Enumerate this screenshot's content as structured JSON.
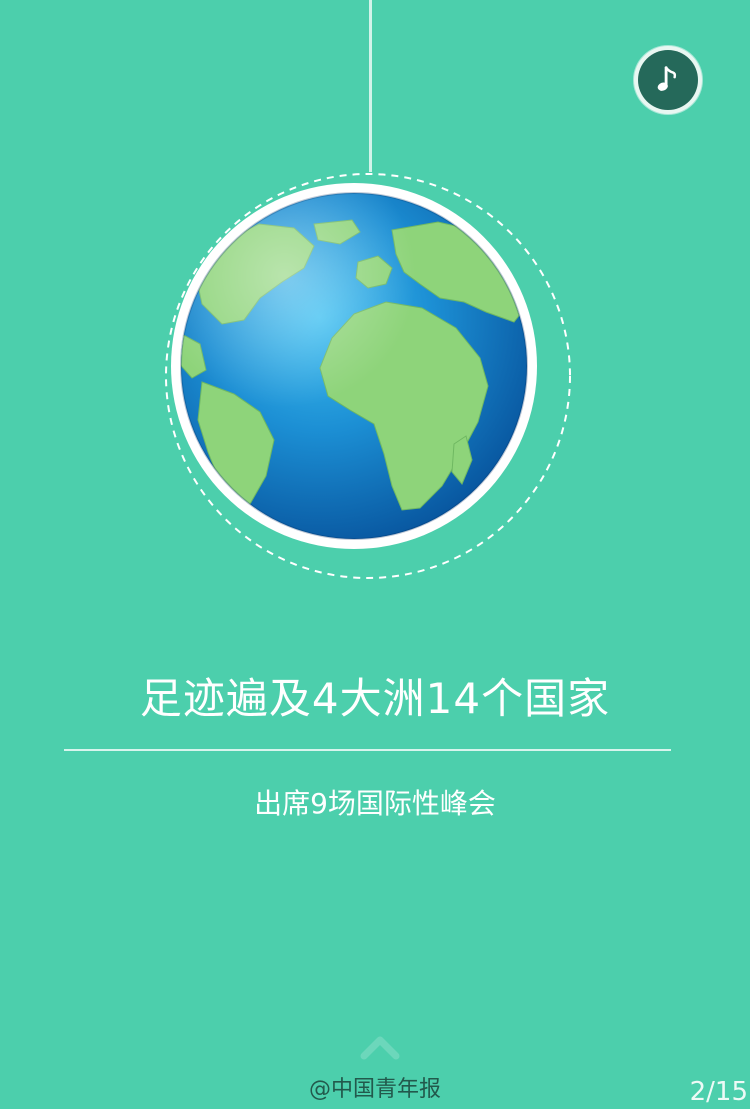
{
  "headline": "足迹遍及4大洲14个国家",
  "subheadline": "出席9场国际性峰会",
  "watermark": "@中国青年报",
  "page_indicator": "2/15",
  "icons": {
    "music": "music-note-icon",
    "globe": "globe-icon",
    "scroll": "chevron-up-icon"
  },
  "colors": {
    "background": "#4ccfac",
    "text": "#ffffff",
    "music_button": "#25695a",
    "ocean": "#1c8fd4",
    "land": "#8ed47a"
  }
}
